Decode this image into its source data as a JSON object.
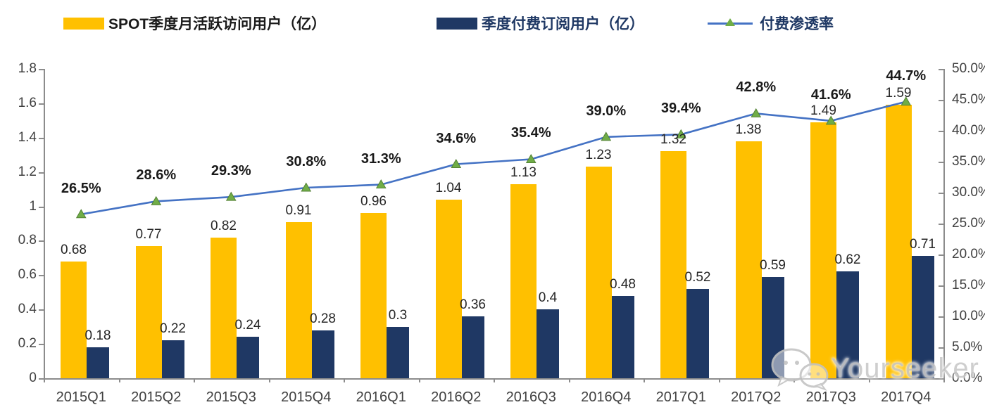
{
  "legend": [
    {
      "label": "SPOT季度月活跃访问用户（亿）",
      "swatch": "bar",
      "color": "#FFC000",
      "text_color": "#1a1a1a"
    },
    {
      "label": "季度付费订阅用户（亿）",
      "swatch": "bar",
      "color": "#1F3864",
      "text_color": "#1f3864"
    },
    {
      "label": "付费渗透率",
      "swatch": "line-triangle-marker",
      "line_color": "#4472C4",
      "marker_color": "#70AD47",
      "text_color": "#1f3864"
    }
  ],
  "chart_data": {
    "type": "bar",
    "subtype": "combo-bar-line-dual-axis",
    "categories": [
      "2015Q1",
      "2015Q2",
      "2015Q3",
      "2015Q4",
      "2016Q1",
      "2016Q2",
      "2016Q3",
      "2016Q4",
      "2017Q1",
      "2017Q2",
      "2017Q3",
      "2017Q4"
    ],
    "series": [
      {
        "name": "SPOT季度月活跃访问用户（亿）",
        "type": "bar",
        "axis": "left",
        "color": "#FFC000",
        "values": [
          0.68,
          0.77,
          0.82,
          0.91,
          0.96,
          1.04,
          1.13,
          1.23,
          1.32,
          1.38,
          1.49,
          1.59
        ],
        "labels": [
          "0.68",
          "0.77",
          "0.82",
          "0.91",
          "0.96",
          "1.04",
          "1.13",
          "1.23",
          "1.32",
          "1.38",
          "1.49",
          "1.59"
        ]
      },
      {
        "name": "季度付费订阅用户（亿）",
        "type": "bar",
        "axis": "left",
        "color": "#1F3864",
        "values": [
          0.18,
          0.22,
          0.24,
          0.28,
          0.3,
          0.36,
          0.4,
          0.48,
          0.52,
          0.59,
          0.62,
          0.71
        ],
        "labels": [
          "0.18",
          "0.22",
          "0.24",
          "0.28",
          "0.3",
          "0.36",
          "0.4",
          "0.48",
          "0.52",
          "0.59",
          "0.62",
          "0.71"
        ]
      },
      {
        "name": "付费渗透率",
        "type": "line",
        "axis": "right",
        "color": "#4472C4",
        "marker": "triangle",
        "marker_color": "#70AD47",
        "values": [
          26.5,
          28.6,
          29.3,
          30.8,
          31.3,
          34.6,
          35.4,
          39.0,
          39.4,
          42.8,
          41.6,
          44.7
        ],
        "labels": [
          "26.5%",
          "28.6%",
          "29.3%",
          "30.8%",
          "31.3%",
          "34.6%",
          "35.4%",
          "39.0%",
          "39.4%",
          "42.8%",
          "41.6%",
          "44.7%"
        ]
      }
    ],
    "title": "",
    "xlabel": "",
    "ylabel": "",
    "left_axis": {
      "min": 0,
      "max": 1.8,
      "step": 0.2,
      "ticks": [
        "0",
        "0.2",
        "0.4",
        "0.6",
        "0.8",
        "1",
        "1.2",
        "1.4",
        "1.6",
        "1.8"
      ]
    },
    "right_axis": {
      "min": 0,
      "max": 50,
      "step": 5,
      "ticks": [
        "0.0%",
        "5.0%",
        "10.0%",
        "15.0%",
        "20.0%",
        "25.0%",
        "30.0%",
        "35.0%",
        "40.0%",
        "45.0%",
        "50.0%"
      ]
    },
    "grid": false,
    "legend_position": "top"
  },
  "watermark": {
    "icon": "wechat-icon",
    "text": "Yourseeker"
  },
  "colors": {
    "bar_mau": "#FFC000",
    "bar_paid": "#1F3864",
    "line": "#4472C4",
    "marker": "#70AD47",
    "axis": "#8C8C8C"
  }
}
